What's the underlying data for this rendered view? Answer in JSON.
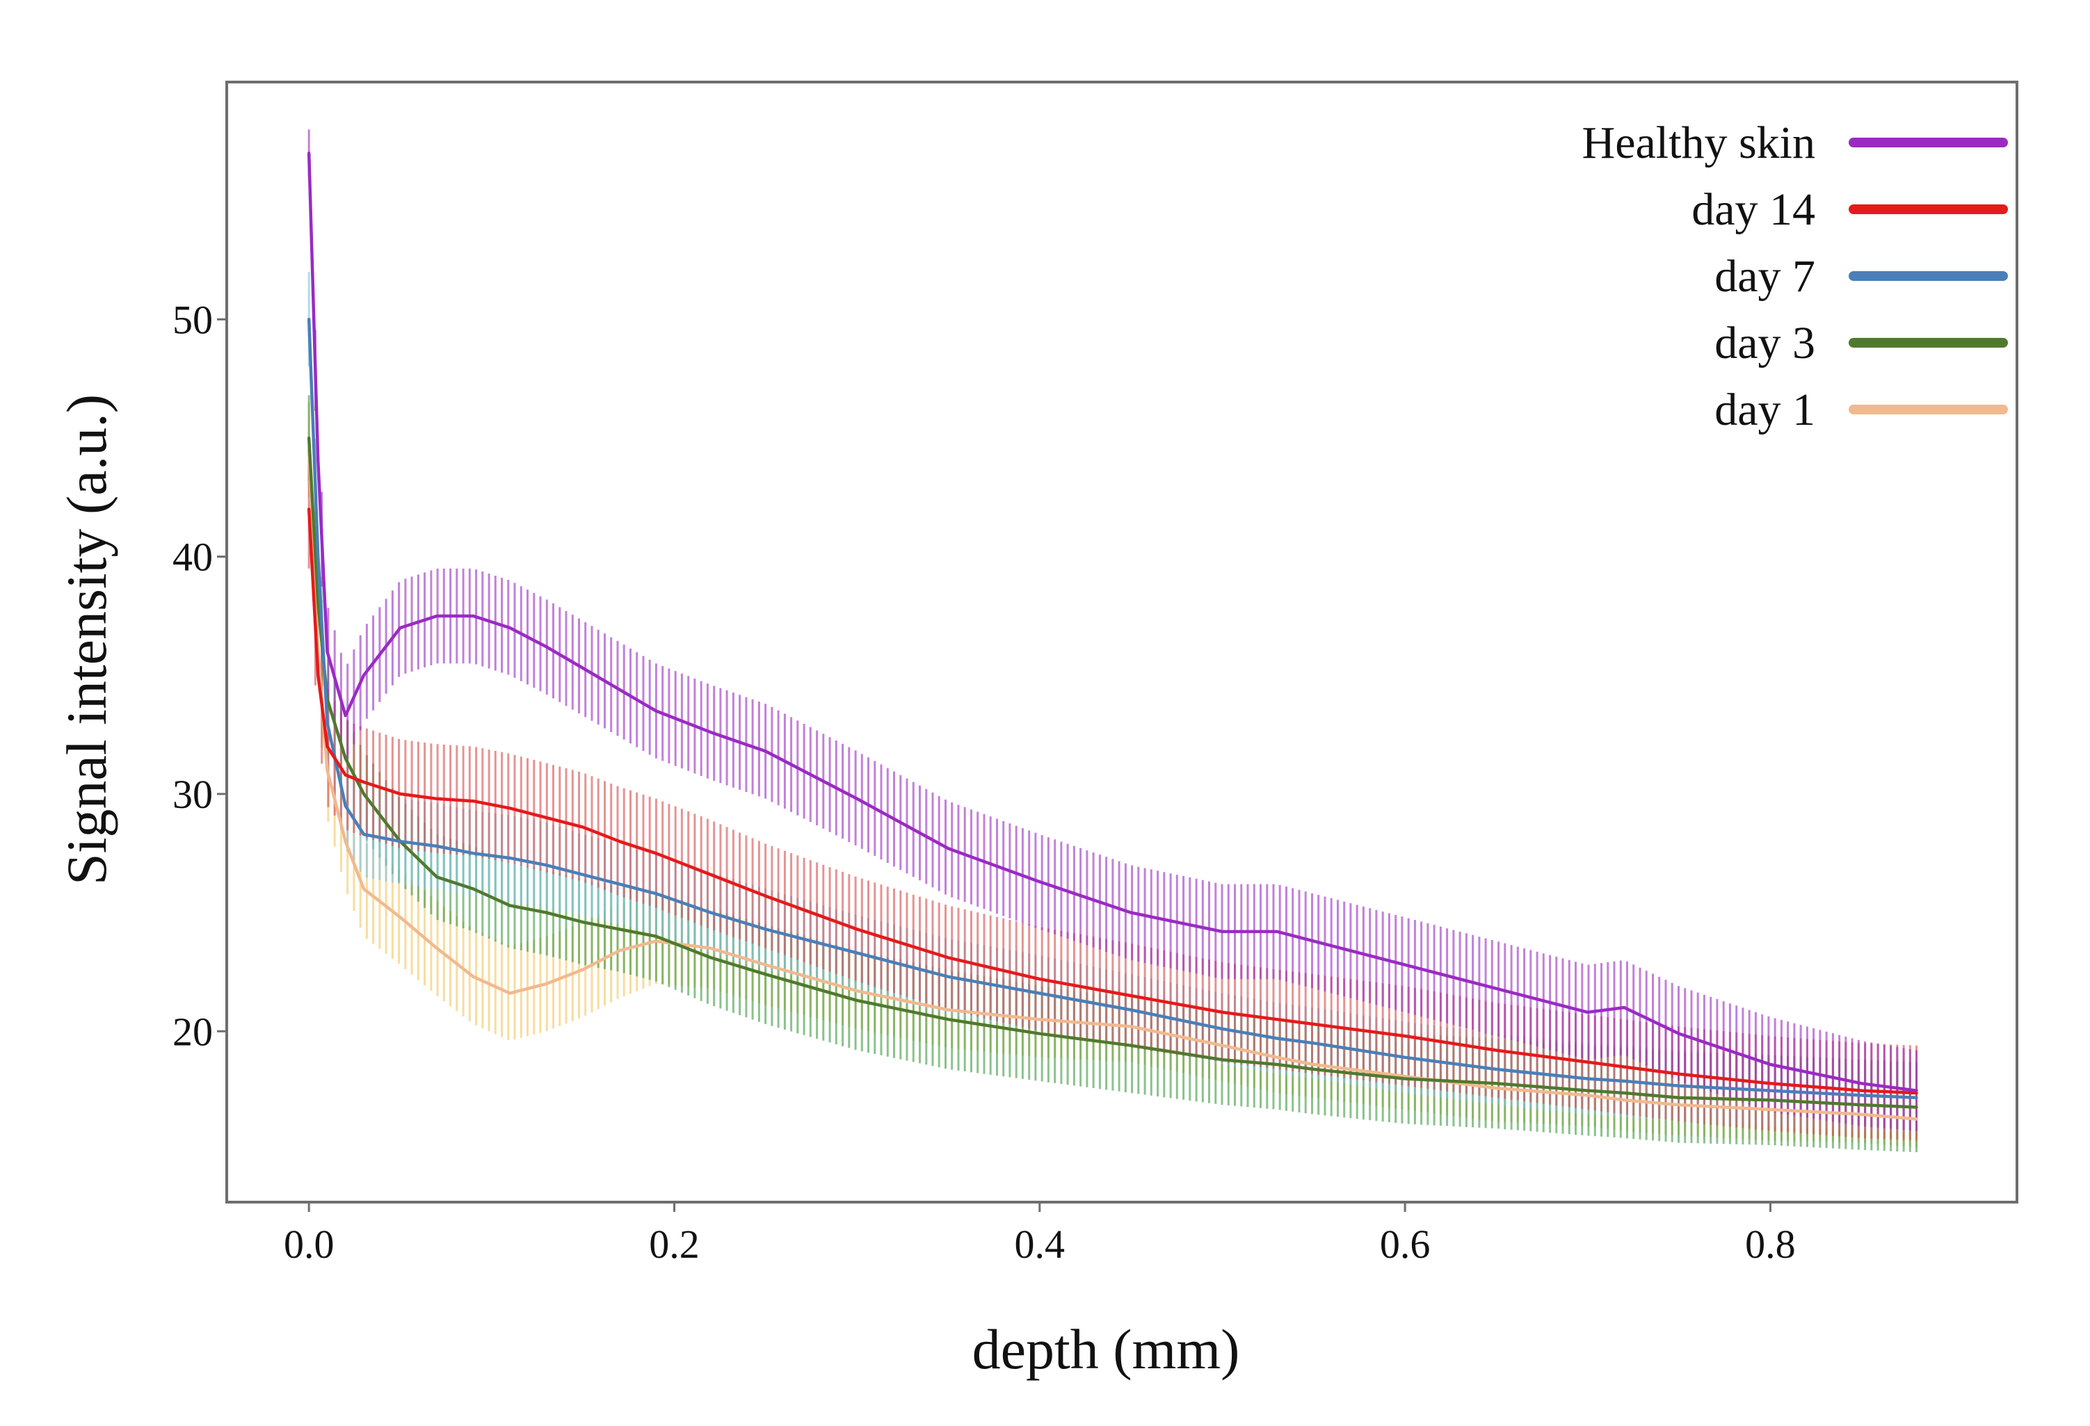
{
  "chart_data": {
    "type": "line",
    "title": "",
    "xlabel": "depth (mm)",
    "ylabel": "Signal intensity (a.u.)",
    "xlim": [
      -0.045,
      0.935
    ],
    "ylim": [
      12.8,
      60.0
    ],
    "grid": false,
    "legend_position": "top-right",
    "x_ticks": [
      {
        "value": 0.0,
        "label": "0.0"
      },
      {
        "value": 0.2,
        "label": "0.2"
      },
      {
        "value": 0.4,
        "label": "0.4"
      },
      {
        "value": 0.6,
        "label": "0.6"
      },
      {
        "value": 0.8,
        "label": "0.8"
      }
    ],
    "y_ticks": [
      {
        "value": 20,
        "label": "20"
      },
      {
        "value": 30,
        "label": "30"
      },
      {
        "value": 40,
        "label": "40"
      },
      {
        "value": 50,
        "label": "50"
      }
    ],
    "x": [
      0.0,
      0.005,
      0.01,
      0.02,
      0.03,
      0.05,
      0.07,
      0.09,
      0.11,
      0.13,
      0.15,
      0.17,
      0.19,
      0.22,
      0.25,
      0.3,
      0.35,
      0.4,
      0.45,
      0.5,
      0.53,
      0.55,
      0.6,
      0.65,
      0.7,
      0.72,
      0.75,
      0.8,
      0.85,
      0.88
    ],
    "series": [
      {
        "name": "day 1",
        "color": "#f1b98f",
        "band_color": "#f2c65e",
        "values": [
          44.5,
          36.0,
          31.0,
          28.0,
          26.0,
          24.8,
          23.5,
          22.3,
          21.6,
          22.0,
          22.6,
          23.4,
          23.8,
          23.5,
          22.8,
          21.7,
          20.9,
          20.5,
          20.2,
          19.4,
          18.9,
          18.6,
          18.1,
          17.6,
          17.3,
          17.1,
          16.9,
          16.7,
          16.5,
          16.3
        ],
        "errors": [
          2.0,
          2.0,
          2.0,
          2.0,
          2.0,
          2.0,
          2.0,
          2.0,
          2.0,
          2.0,
          2.0,
          2.0,
          1.8,
          1.7,
          1.7,
          1.6,
          1.6,
          1.6,
          1.5,
          1.5,
          1.5,
          1.4,
          1.4,
          1.4,
          1.3,
          1.3,
          1.3,
          1.3,
          1.2,
          1.2
        ]
      },
      {
        "name": "day 3",
        "color": "#4f7a2e",
        "band_color": "#3c9a3f",
        "values": [
          45.0,
          38.0,
          34.0,
          31.5,
          30.0,
          28.0,
          26.5,
          26.0,
          25.3,
          25.0,
          24.6,
          24.3,
          24.0,
          23.1,
          22.4,
          21.3,
          20.5,
          19.9,
          19.4,
          18.8,
          18.6,
          18.4,
          18.0,
          17.8,
          17.5,
          17.4,
          17.2,
          17.1,
          16.9,
          16.8
        ],
        "errors": [
          1.8,
          1.8,
          1.8,
          1.8,
          1.8,
          1.8,
          1.8,
          1.8,
          1.8,
          1.8,
          1.8,
          1.8,
          1.9,
          2.0,
          2.1,
          2.1,
          2.1,
          2.0,
          2.0,
          1.9,
          1.9,
          1.9,
          1.9,
          1.9,
          1.9,
          1.9,
          1.9,
          1.9,
          1.9,
          1.9
        ]
      },
      {
        "name": "day 7",
        "color": "#4a7fb8",
        "band_color": "#7dc3e6",
        "values": [
          50.0,
          40.0,
          33.0,
          29.5,
          28.3,
          28.0,
          27.8,
          27.5,
          27.3,
          27.0,
          26.6,
          26.2,
          25.8,
          25.0,
          24.3,
          23.3,
          22.3,
          21.6,
          20.9,
          20.1,
          19.7,
          19.5,
          18.9,
          18.4,
          18.0,
          17.9,
          17.7,
          17.5,
          17.3,
          17.2
        ],
        "errors": [
          2.0,
          2.0,
          2.0,
          1.8,
          1.8,
          1.8,
          1.8,
          1.8,
          1.8,
          1.8,
          1.7,
          1.7,
          1.7,
          1.7,
          1.7,
          1.6,
          1.6,
          1.6,
          1.5,
          1.5,
          1.5,
          1.5,
          1.5,
          1.5,
          1.5,
          1.5,
          1.5,
          1.5,
          1.5,
          1.5
        ]
      },
      {
        "name": "day 14",
        "color": "#e41a1c",
        "band_color": "#d64b4b",
        "values": [
          42.0,
          35.0,
          32.0,
          30.8,
          30.5,
          30.0,
          29.8,
          29.7,
          29.4,
          29.0,
          28.6,
          28.0,
          27.5,
          26.6,
          25.7,
          24.3,
          23.1,
          22.2,
          21.5,
          20.8,
          20.5,
          20.3,
          19.8,
          19.2,
          18.7,
          18.5,
          18.2,
          17.8,
          17.5,
          17.4
        ],
        "errors": [
          2.5,
          2.5,
          2.5,
          2.3,
          2.3,
          2.3,
          2.3,
          2.3,
          2.3,
          2.3,
          2.3,
          2.3,
          2.3,
          2.3,
          2.2,
          2.2,
          2.2,
          2.2,
          2.2,
          2.1,
          2.1,
          2.1,
          2.1,
          2.0,
          2.0,
          2.0,
          2.0,
          2.0,
          2.0,
          2.0
        ]
      },
      {
        "name": "Healthy skin",
        "color": "#9a2bc2",
        "band_color": "#9a2bc2",
        "values": [
          57.0,
          44.0,
          36.0,
          33.3,
          35.0,
          37.0,
          37.5,
          37.5,
          37.0,
          36.2,
          35.3,
          34.4,
          33.5,
          32.6,
          31.8,
          29.8,
          27.7,
          26.3,
          25.0,
          24.2,
          24.2,
          23.8,
          22.8,
          21.8,
          20.8,
          21.0,
          19.9,
          18.6,
          17.8,
          17.5
        ],
        "errors": [
          1.0,
          2.0,
          2.0,
          2.0,
          2.0,
          2.0,
          2.0,
          2.0,
          2.0,
          2.0,
          2.0,
          2.0,
          2.0,
          2.0,
          2.0,
          2.0,
          2.0,
          2.0,
          2.0,
          2.0,
          2.0,
          2.0,
          2.0,
          2.0,
          2.0,
          2.0,
          2.0,
          2.0,
          1.8,
          1.7
        ]
      }
    ],
    "legend": [
      {
        "label": "Healthy skin",
        "color": "#9a2bc2"
      },
      {
        "label": "day 14",
        "color": "#e41a1c"
      },
      {
        "label": "day 7",
        "color": "#4a7fb8"
      },
      {
        "label": "day 3",
        "color": "#4f7a2e"
      },
      {
        "label": "day 1",
        "color": "#f1b98f"
      }
    ]
  }
}
